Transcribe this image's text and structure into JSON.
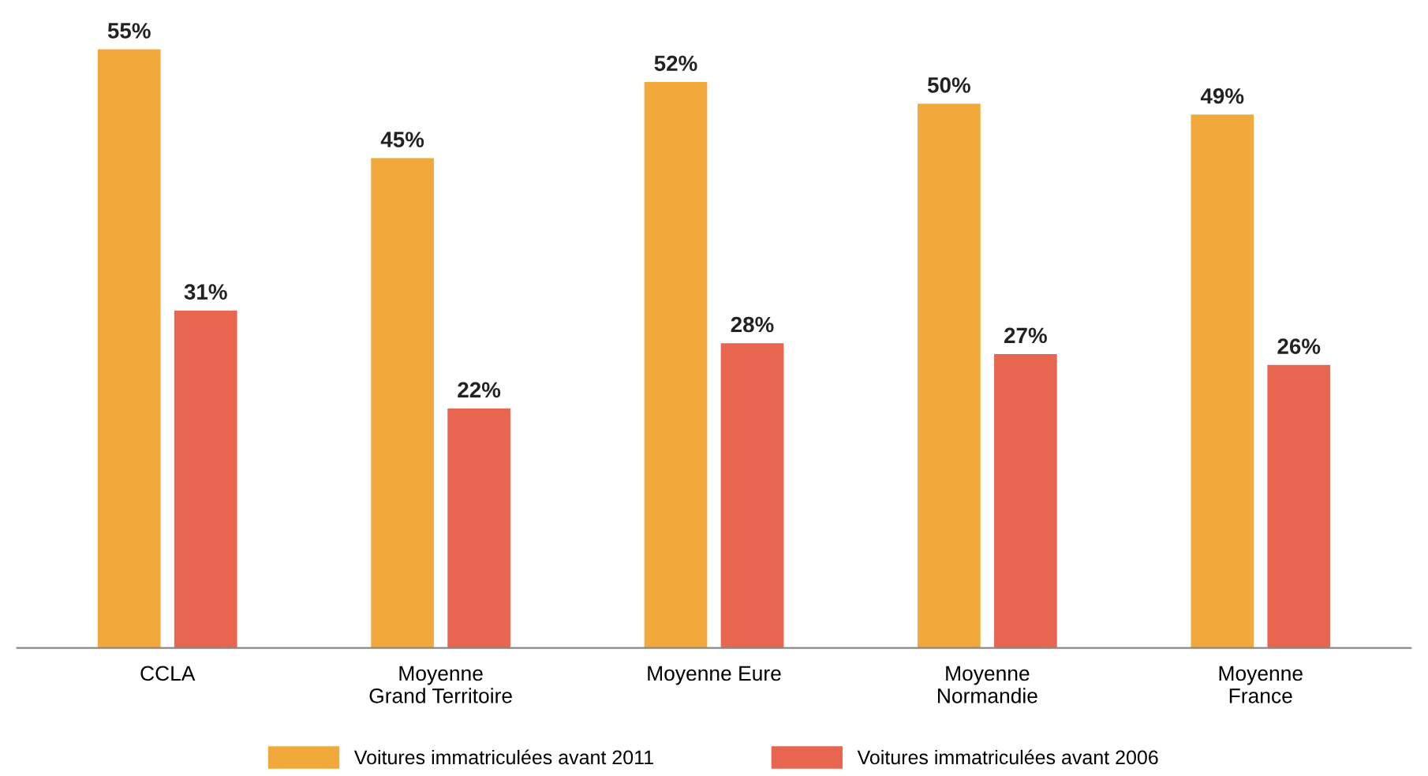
{
  "chart_data": {
    "type": "bar",
    "categories": [
      "CCLA",
      "Moyenne\nGrand Territoire",
      "Moyenne Eure",
      "Moyenne\nNormandie",
      "Moyenne\nFrance"
    ],
    "series": [
      {
        "name": "Voitures immatriculées avant 2011",
        "color": "#f2a93b",
        "values": [
          55,
          45,
          52,
          50,
          49
        ],
        "value_labels": [
          "55%",
          "45%",
          "52%",
          "50%",
          "49%"
        ]
      },
      {
        "name": "Voitures immatriculées avant 2006",
        "color": "#e8664f",
        "values": [
          31,
          22,
          28,
          27,
          26
        ],
        "value_labels": [
          "31%",
          "22%",
          "28%",
          "27%",
          "26%"
        ]
      }
    ],
    "legend": "bottom",
    "grid": false
  }
}
